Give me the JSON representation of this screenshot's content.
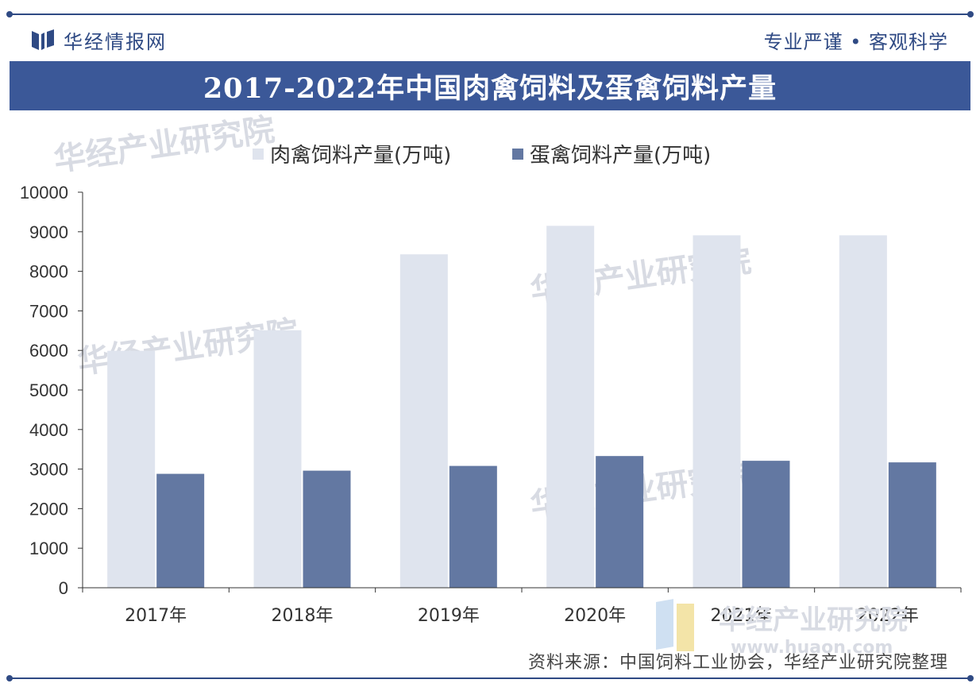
{
  "header": {
    "brand": "华经情报网",
    "slogan": "专业严谨 • 客观科学",
    "title": "2017-2022年中国肉禽饲料及蛋禽饲料产量"
  },
  "watermark": {
    "text": "华经产业研究院",
    "url": "www.huaon.com"
  },
  "source": "资料来源：中国饲料工业协会，华经产业研究院整理",
  "colors": {
    "accent": "#3b5898",
    "series1": "#dfe4ee",
    "series2": "#6378a2"
  },
  "chart_data": {
    "type": "bar",
    "title": "2017-2022年中国肉禽饲料及蛋禽饲料产量",
    "categories": [
      "2017年",
      "2018年",
      "2019年",
      "2020年",
      "2021年",
      "2022年"
    ],
    "series": [
      {
        "name": "肉禽饲料产量(万吨)",
        "values": [
          5990,
          6510,
          8430,
          9150,
          8910,
          8910
        ]
      },
      {
        "name": "蛋禽饲料产量(万吨)",
        "values": [
          2880,
          2960,
          3080,
          3330,
          3210,
          3170
        ]
      }
    ],
    "ylim": [
      0,
      10000
    ],
    "yticks": [
      "0",
      "1000",
      "2000",
      "3000",
      "4000",
      "5000",
      "6000",
      "7000",
      "8000",
      "9000",
      "10000"
    ],
    "xlabel": "",
    "ylabel": "",
    "legend": "top-center",
    "grid": false
  }
}
